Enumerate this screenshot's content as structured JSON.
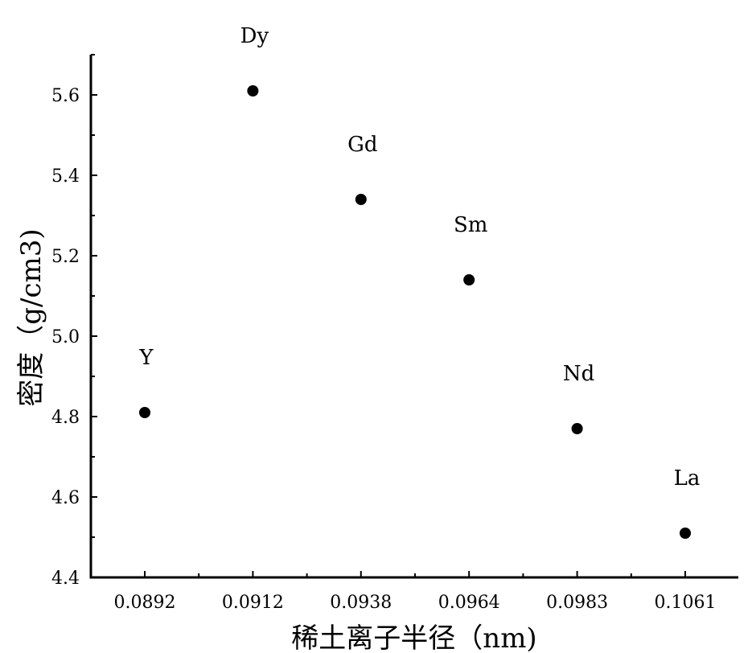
{
  "chart_data": {
    "type": "scatter",
    "title": "",
    "xlabel": "稀土离子半径（nm)",
    "ylabel": "密度（g/cm3)",
    "categories": [
      "0.0892",
      "0.0912",
      "0.0938",
      "0.0964",
      "0.0983",
      "0.1061"
    ],
    "points": [
      {
        "x": "0.0892",
        "y": 4.81,
        "label": "Y"
      },
      {
        "x": "0.0912",
        "y": 5.61,
        "label": "Dy"
      },
      {
        "x": "0.0938",
        "y": 5.34,
        "label": "Gd"
      },
      {
        "x": "0.0964",
        "y": 5.14,
        "label": "Sm"
      },
      {
        "x": "0.0983",
        "y": 4.77,
        "label": "Nd"
      },
      {
        "x": "0.1061",
        "y": 4.51,
        "label": "La"
      }
    ],
    "ylim": [
      4.4,
      5.7
    ],
    "yticks": [
      "4.4",
      "4.6",
      "4.8",
      "5.0",
      "5.2",
      "5.4",
      "5.6"
    ],
    "grid": false,
    "marker_color": "#000000"
  }
}
